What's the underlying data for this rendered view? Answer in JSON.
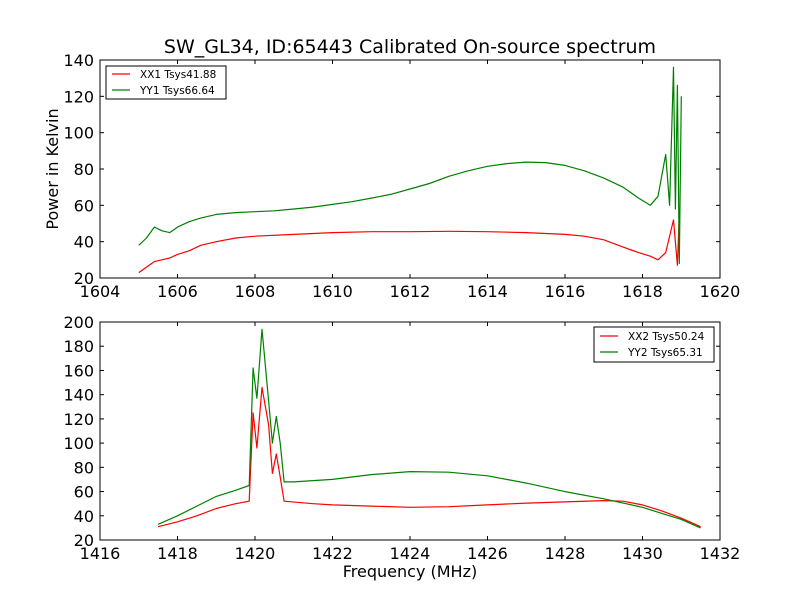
{
  "figure": {
    "title": "SW_GL34, ID:65443 Calibrated On-source spectrum"
  },
  "chart_data": [
    {
      "type": "line",
      "title": "SW_GL34, ID:65443 Calibrated On-source spectrum",
      "xlabel": "",
      "ylabel": "Power in Kelvin",
      "xlim": [
        1604,
        1620
      ],
      "ylim": [
        20,
        140
      ],
      "xticks": [
        1604,
        1606,
        1608,
        1610,
        1612,
        1614,
        1616,
        1618,
        1620
      ],
      "yticks": [
        20,
        40,
        60,
        80,
        100,
        120,
        140
      ],
      "legend": "top-left",
      "grid": false,
      "series": [
        {
          "name": "XX1 Tsys41.88",
          "color": "#ff0000",
          "points": [
            [
              1605.0,
              23
            ],
            [
              1605.2,
              26
            ],
            [
              1605.4,
              29
            ],
            [
              1605.6,
              30
            ],
            [
              1605.8,
              31
            ],
            [
              1606.0,
              33
            ],
            [
              1606.3,
              35
            ],
            [
              1606.6,
              38
            ],
            [
              1607.0,
              40
            ],
            [
              1607.5,
              42
            ],
            [
              1608.0,
              43
            ],
            [
              1609.0,
              44
            ],
            [
              1610.0,
              45
            ],
            [
              1611.0,
              45.5
            ],
            [
              1612.0,
              45.5
            ],
            [
              1613.0,
              45.7
            ],
            [
              1614.0,
              45.5
            ],
            [
              1615.0,
              45
            ],
            [
              1616.0,
              44
            ],
            [
              1616.5,
              43
            ],
            [
              1617.0,
              41
            ],
            [
              1617.5,
              37
            ],
            [
              1617.9,
              34
            ],
            [
              1618.2,
              32
            ],
            [
              1618.4,
              30
            ],
            [
              1618.6,
              34
            ],
            [
              1618.8,
              52
            ],
            [
              1618.9,
              27
            ],
            [
              1618.95,
              55
            ]
          ]
        },
        {
          "name": "YY1 Tsys66.64",
          "color": "#008000",
          "points": [
            [
              1605.0,
              38
            ],
            [
              1605.2,
              42
            ],
            [
              1605.4,
              48
            ],
            [
              1605.6,
              46
            ],
            [
              1605.8,
              45
            ],
            [
              1606.0,
              48
            ],
            [
              1606.3,
              51
            ],
            [
              1606.6,
              53
            ],
            [
              1607.0,
              55
            ],
            [
              1607.5,
              56
            ],
            [
              1608.0,
              56.5
            ],
            [
              1608.5,
              57
            ],
            [
              1609.0,
              58
            ],
            [
              1609.5,
              59
            ],
            [
              1610.0,
              60.5
            ],
            [
              1610.5,
              62
            ],
            [
              1611.0,
              64
            ],
            [
              1611.5,
              66
            ],
            [
              1612.0,
              69
            ],
            [
              1612.5,
              72
            ],
            [
              1613.0,
              76
            ],
            [
              1613.5,
              79
            ],
            [
              1614.0,
              81.5
            ],
            [
              1614.5,
              83
            ],
            [
              1615.0,
              83.8
            ],
            [
              1615.5,
              83.5
            ],
            [
              1616.0,
              82
            ],
            [
              1616.5,
              79
            ],
            [
              1617.0,
              75
            ],
            [
              1617.5,
              70
            ],
            [
              1617.9,
              64
            ],
            [
              1618.2,
              60
            ],
            [
              1618.4,
              65
            ],
            [
              1618.6,
              88
            ],
            [
              1618.7,
              60
            ],
            [
              1618.8,
              136
            ],
            [
              1618.85,
              58
            ],
            [
              1618.9,
              126
            ],
            [
              1618.95,
              28
            ],
            [
              1619.0,
              120
            ]
          ]
        }
      ]
    },
    {
      "type": "line",
      "title": "",
      "xlabel": "Frequency (MHz)",
      "ylabel": "",
      "xlim": [
        1416,
        1432
      ],
      "ylim": [
        20,
        200
      ],
      "xticks": [
        1416,
        1418,
        1420,
        1422,
        1424,
        1426,
        1428,
        1430,
        1432
      ],
      "yticks": [
        20,
        40,
        60,
        80,
        100,
        120,
        140,
        160,
        180,
        200
      ],
      "legend": "top-right",
      "grid": false,
      "series": [
        {
          "name": "XX2 Tsys50.24",
          "color": "#ff0000",
          "points": [
            [
              1417.5,
              31
            ],
            [
              1418.0,
              35
            ],
            [
              1418.5,
              40
            ],
            [
              1419.0,
              46
            ],
            [
              1419.5,
              50
            ],
            [
              1419.85,
              52
            ],
            [
              1419.95,
              125
            ],
            [
              1420.05,
              96
            ],
            [
              1420.18,
              146
            ],
            [
              1420.35,
              115
            ],
            [
              1420.45,
              75
            ],
            [
              1420.55,
              91
            ],
            [
              1420.65,
              72
            ],
            [
              1420.75,
              52
            ],
            [
              1421.5,
              50
            ],
            [
              1422.0,
              49
            ],
            [
              1423.0,
              48
            ],
            [
              1424.0,
              47
            ],
            [
              1425.0,
              47.5
            ],
            [
              1426.0,
              49
            ],
            [
              1427.0,
              50.5
            ],
            [
              1428.0,
              51.5
            ],
            [
              1429.0,
              52.5
            ],
            [
              1429.5,
              52
            ],
            [
              1430.0,
              49
            ],
            [
              1430.5,
              44
            ],
            [
              1431.0,
              38
            ],
            [
              1431.5,
              31
            ]
          ]
        },
        {
          "name": "YY2 Tsys65.31",
          "color": "#008000",
          "points": [
            [
              1417.5,
              33
            ],
            [
              1418.0,
              40
            ],
            [
              1418.5,
              48
            ],
            [
              1419.0,
              56
            ],
            [
              1419.5,
              61
            ],
            [
              1419.85,
              65
            ],
            [
              1419.95,
              162
            ],
            [
              1420.05,
              137
            ],
            [
              1420.18,
              194
            ],
            [
              1420.35,
              135
            ],
            [
              1420.45,
              100
            ],
            [
              1420.55,
              122
            ],
            [
              1420.65,
              100
            ],
            [
              1420.75,
              68
            ],
            [
              1421.0,
              68
            ],
            [
              1422.0,
              70
            ],
            [
              1423.0,
              74
            ],
            [
              1424.0,
              76.5
            ],
            [
              1425.0,
              76
            ],
            [
              1426.0,
              73
            ],
            [
              1427.0,
              67
            ],
            [
              1428.0,
              60
            ],
            [
              1429.0,
              54
            ],
            [
              1430.0,
              47
            ],
            [
              1430.5,
              42
            ],
            [
              1431.0,
              37
            ],
            [
              1431.5,
              30
            ]
          ]
        }
      ]
    }
  ]
}
